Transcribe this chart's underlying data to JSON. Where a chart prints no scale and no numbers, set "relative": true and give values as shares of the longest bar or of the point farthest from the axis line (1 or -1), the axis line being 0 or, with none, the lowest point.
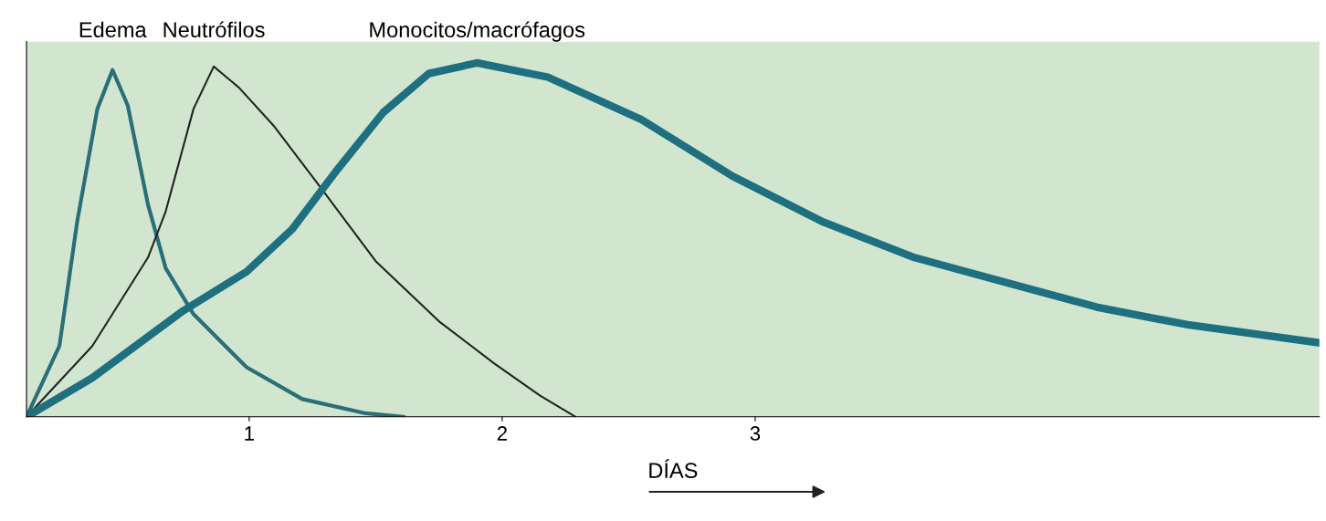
{
  "chart_data": {
    "type": "line",
    "relative": true,
    "xlabel": "DÍAS",
    "xlim": [
      0.12,
      5.23
    ],
    "xticks": [
      1,
      2,
      3
    ],
    "grid": false,
    "legend": false,
    "marker": "none",
    "line_style": "solid",
    "series": [
      {
        "name": "Edema",
        "color": "#2a6e78",
        "x": [
          0.12,
          0.25,
          0.32,
          0.4,
          0.46,
          0.52,
          0.6,
          0.67,
          0.78,
          0.99,
          1.21,
          1.46,
          1.61
        ],
        "values": [
          0,
          0.2,
          0.55,
          0.87,
          0.98,
          0.88,
          0.6,
          0.42,
          0.29,
          0.14,
          0.05,
          0.01,
          0
        ]
      },
      {
        "name": "Neutrófilos",
        "color": "#222222",
        "x": [
          0.12,
          0.38,
          0.6,
          0.67,
          0.78,
          0.86,
          0.96,
          1.1,
          1.28,
          1.5,
          1.75,
          1.97,
          2.15,
          2.29
        ],
        "values": [
          0,
          0.2,
          0.45,
          0.58,
          0.87,
          0.99,
          0.93,
          0.82,
          0.65,
          0.44,
          0.27,
          0.15,
          0.06,
          0
        ]
      },
      {
        "name": "Monocitos/macrófagos",
        "color": "#1e6f80",
        "x": [
          0.12,
          0.38,
          0.74,
          0.99,
          1.17,
          1.35,
          1.53,
          1.71,
          1.9,
          2.18,
          2.55,
          2.91,
          3.27,
          3.63,
          3.99,
          4.35,
          4.71,
          5.22
        ],
        "values": [
          0,
          0.11,
          0.3,
          0.41,
          0.53,
          0.7,
          0.86,
          0.97,
          1.0,
          0.96,
          0.84,
          0.68,
          0.55,
          0.45,
          0.38,
          0.31,
          0.26,
          0.21
        ]
      }
    ]
  }
}
